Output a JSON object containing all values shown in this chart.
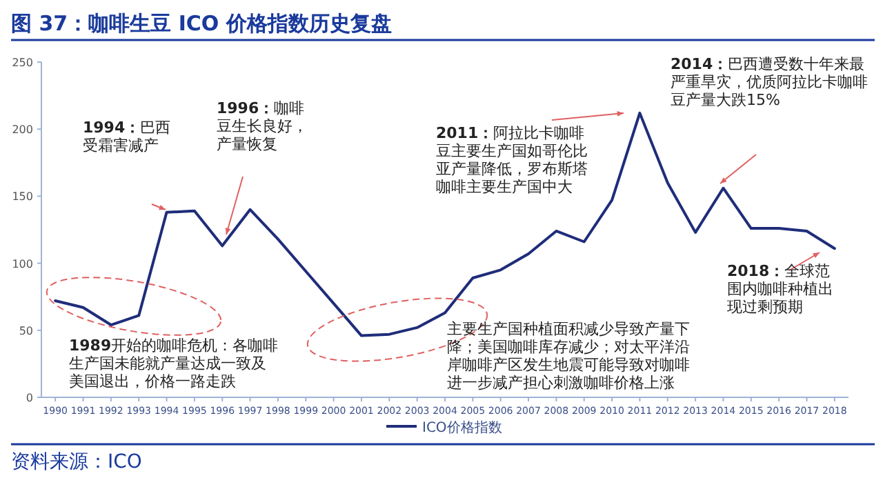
{
  "chart_data": {
    "type": "line",
    "title": "图 37：咖啡生豆 ICO 价格指数历史复盘",
    "categories": [
      "1990",
      "1991",
      "1992",
      "1993",
      "1994",
      "1995",
      "1996",
      "1997",
      "1998",
      "1999",
      "2000",
      "2001",
      "2002",
      "2003",
      "2004",
      "2005",
      "2006",
      "2007",
      "2008",
      "2009",
      "2010",
      "2011",
      "2012",
      "2013",
      "2014",
      "2015",
      "2016",
      "2017",
      "2018"
    ],
    "series": [
      {
        "name": "ICO价格指数",
        "color": "#1f2d7a",
        "values": [
          72,
          67,
          54,
          61,
          138,
          139,
          113,
          140,
          118,
          94,
          70,
          46,
          47,
          52,
          63,
          89,
          95,
          107,
          124,
          116,
          147,
          212,
          160,
          123,
          156,
          126,
          126,
          124,
          111
        ]
      }
    ],
    "ylim": [
      0,
      250
    ],
    "yticks": [
      0,
      50,
      100,
      150,
      200,
      250
    ],
    "grid": false,
    "legend": "bottom",
    "marker": "none",
    "line_style": "solid",
    "annotations": [
      "**1994：**巴西受霜害减产",
      "**1996：**咖啡豆生长良好，产量恢复",
      "**2011：**阿拉比卡咖啡豆主要生产国如哥伦比亚产量降低，罗布斯塔咖啡主要生产国中大",
      "**2014：**巴西遭受数十年来最严重旱灾，优质阿拉比卡咖啡豆产量大跌15%",
      "**2018：**全球范围内咖啡种植出现过剩预期",
      "**1989**开始的咖啡危机：各咖啡生产国未能就产量达成一致及美国退出，价格一路走跌",
      "主要生产国种植面积减少导致产量下降；美国咖啡库存减少；对太平洋沿岸咖啡产区发生地震可能导致对咖啡进一步减产担心刺激咖啡价格上涨",
      "资料来源：ICO"
    ]
  }
}
